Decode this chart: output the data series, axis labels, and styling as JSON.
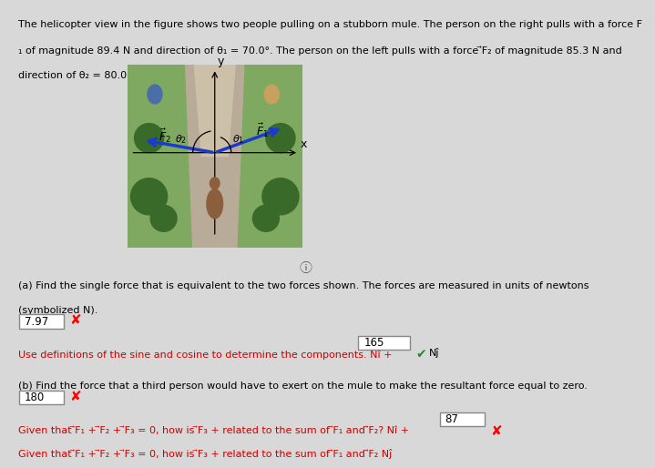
{
  "title_line1": "The helicopter view in the figure shows two people pulling on a stubborn mule. The person on the right pulls with a force F",
  "title_line2": "₁ of magnitude 89.4 N and direction of θ₁ = 70.0°. The person on the left pulls with a force ⃗F₂ of magnitude 85.3 N and",
  "title_line3": "direction of θ₂ = 80.0°.",
  "part_a_line1": "(a) Find the single force that is equivalent to the two forces shown. The forces are measured in units of newtons",
  "part_a_line2": "(symbolized N).",
  "box1_value": "7.97",
  "hint_a": "Use definitions of the sine and cosine to determine the components. Nî + ",
  "box2_value": "165",
  "hint_a_end": " Nĵ",
  "part_b_line1": "(b) Find the force that a third person would have to exert on the mule to make the resultant force equal to zero.",
  "box3_value": "180",
  "hint_b1": "Given that ⃗F₁ + ⃗F₂ + ⃗F₃ = 0, how is ⃗F₃ + related to the sum of ⃗F₁ and ⃗F₂? Nî + ",
  "box4_value": "87",
  "hint_b2": "Given that ⃗F₁ + ⃗F₂ + ⃗F₃ = 0, how is ⃗F₃ + related to the sum of ⃗F₁ and ⃗F₂ Nĵ",
  "red_color": "#cc0000",
  "green_color": "#228B22",
  "arrow_color": "#1a3ccc",
  "theta1": 70.0,
  "theta2": 80.0
}
